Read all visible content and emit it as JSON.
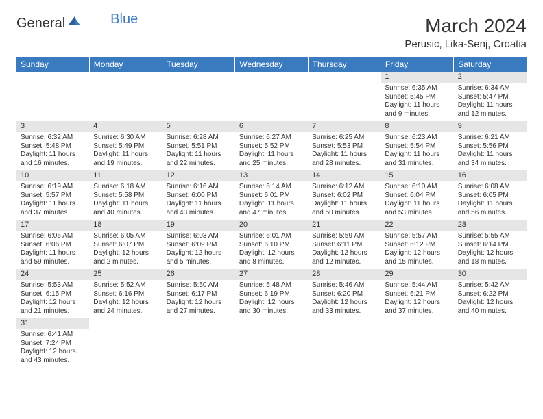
{
  "logo": {
    "text_general": "General",
    "text_blue": "Blue"
  },
  "title": "March 2024",
  "location": "Perusic, Lika-Senj, Croatia",
  "colors": {
    "header_bg": "#3a7bbf",
    "header_text": "#ffffff",
    "daynum_bg": "#e6e6e6",
    "text": "#333333",
    "page_bg": "#ffffff"
  },
  "weekdays": [
    "Sunday",
    "Monday",
    "Tuesday",
    "Wednesday",
    "Thursday",
    "Friday",
    "Saturday"
  ],
  "weeks": [
    [
      null,
      null,
      null,
      null,
      null,
      {
        "n": "1",
        "sr": "Sunrise: 6:35 AM",
        "ss": "Sunset: 5:45 PM",
        "dl": "Daylight: 11 hours and 9 minutes."
      },
      {
        "n": "2",
        "sr": "Sunrise: 6:34 AM",
        "ss": "Sunset: 5:47 PM",
        "dl": "Daylight: 11 hours and 12 minutes."
      }
    ],
    [
      {
        "n": "3",
        "sr": "Sunrise: 6:32 AM",
        "ss": "Sunset: 5:48 PM",
        "dl": "Daylight: 11 hours and 16 minutes."
      },
      {
        "n": "4",
        "sr": "Sunrise: 6:30 AM",
        "ss": "Sunset: 5:49 PM",
        "dl": "Daylight: 11 hours and 19 minutes."
      },
      {
        "n": "5",
        "sr": "Sunrise: 6:28 AM",
        "ss": "Sunset: 5:51 PM",
        "dl": "Daylight: 11 hours and 22 minutes."
      },
      {
        "n": "6",
        "sr": "Sunrise: 6:27 AM",
        "ss": "Sunset: 5:52 PM",
        "dl": "Daylight: 11 hours and 25 minutes."
      },
      {
        "n": "7",
        "sr": "Sunrise: 6:25 AM",
        "ss": "Sunset: 5:53 PM",
        "dl": "Daylight: 11 hours and 28 minutes."
      },
      {
        "n": "8",
        "sr": "Sunrise: 6:23 AM",
        "ss": "Sunset: 5:54 PM",
        "dl": "Daylight: 11 hours and 31 minutes."
      },
      {
        "n": "9",
        "sr": "Sunrise: 6:21 AM",
        "ss": "Sunset: 5:56 PM",
        "dl": "Daylight: 11 hours and 34 minutes."
      }
    ],
    [
      {
        "n": "10",
        "sr": "Sunrise: 6:19 AM",
        "ss": "Sunset: 5:57 PM",
        "dl": "Daylight: 11 hours and 37 minutes."
      },
      {
        "n": "11",
        "sr": "Sunrise: 6:18 AM",
        "ss": "Sunset: 5:58 PM",
        "dl": "Daylight: 11 hours and 40 minutes."
      },
      {
        "n": "12",
        "sr": "Sunrise: 6:16 AM",
        "ss": "Sunset: 6:00 PM",
        "dl": "Daylight: 11 hours and 43 minutes."
      },
      {
        "n": "13",
        "sr": "Sunrise: 6:14 AM",
        "ss": "Sunset: 6:01 PM",
        "dl": "Daylight: 11 hours and 47 minutes."
      },
      {
        "n": "14",
        "sr": "Sunrise: 6:12 AM",
        "ss": "Sunset: 6:02 PM",
        "dl": "Daylight: 11 hours and 50 minutes."
      },
      {
        "n": "15",
        "sr": "Sunrise: 6:10 AM",
        "ss": "Sunset: 6:04 PM",
        "dl": "Daylight: 11 hours and 53 minutes."
      },
      {
        "n": "16",
        "sr": "Sunrise: 6:08 AM",
        "ss": "Sunset: 6:05 PM",
        "dl": "Daylight: 11 hours and 56 minutes."
      }
    ],
    [
      {
        "n": "17",
        "sr": "Sunrise: 6:06 AM",
        "ss": "Sunset: 6:06 PM",
        "dl": "Daylight: 11 hours and 59 minutes."
      },
      {
        "n": "18",
        "sr": "Sunrise: 6:05 AM",
        "ss": "Sunset: 6:07 PM",
        "dl": "Daylight: 12 hours and 2 minutes."
      },
      {
        "n": "19",
        "sr": "Sunrise: 6:03 AM",
        "ss": "Sunset: 6:09 PM",
        "dl": "Daylight: 12 hours and 5 minutes."
      },
      {
        "n": "20",
        "sr": "Sunrise: 6:01 AM",
        "ss": "Sunset: 6:10 PM",
        "dl": "Daylight: 12 hours and 8 minutes."
      },
      {
        "n": "21",
        "sr": "Sunrise: 5:59 AM",
        "ss": "Sunset: 6:11 PM",
        "dl": "Daylight: 12 hours and 12 minutes."
      },
      {
        "n": "22",
        "sr": "Sunrise: 5:57 AM",
        "ss": "Sunset: 6:12 PM",
        "dl": "Daylight: 12 hours and 15 minutes."
      },
      {
        "n": "23",
        "sr": "Sunrise: 5:55 AM",
        "ss": "Sunset: 6:14 PM",
        "dl": "Daylight: 12 hours and 18 minutes."
      }
    ],
    [
      {
        "n": "24",
        "sr": "Sunrise: 5:53 AM",
        "ss": "Sunset: 6:15 PM",
        "dl": "Daylight: 12 hours and 21 minutes."
      },
      {
        "n": "25",
        "sr": "Sunrise: 5:52 AM",
        "ss": "Sunset: 6:16 PM",
        "dl": "Daylight: 12 hours and 24 minutes."
      },
      {
        "n": "26",
        "sr": "Sunrise: 5:50 AM",
        "ss": "Sunset: 6:17 PM",
        "dl": "Daylight: 12 hours and 27 minutes."
      },
      {
        "n": "27",
        "sr": "Sunrise: 5:48 AM",
        "ss": "Sunset: 6:19 PM",
        "dl": "Daylight: 12 hours and 30 minutes."
      },
      {
        "n": "28",
        "sr": "Sunrise: 5:46 AM",
        "ss": "Sunset: 6:20 PM",
        "dl": "Daylight: 12 hours and 33 minutes."
      },
      {
        "n": "29",
        "sr": "Sunrise: 5:44 AM",
        "ss": "Sunset: 6:21 PM",
        "dl": "Daylight: 12 hours and 37 minutes."
      },
      {
        "n": "30",
        "sr": "Sunrise: 5:42 AM",
        "ss": "Sunset: 6:22 PM",
        "dl": "Daylight: 12 hours and 40 minutes."
      }
    ],
    [
      {
        "n": "31",
        "sr": "Sunrise: 6:41 AM",
        "ss": "Sunset: 7:24 PM",
        "dl": "Daylight: 12 hours and 43 minutes."
      },
      null,
      null,
      null,
      null,
      null,
      null
    ]
  ]
}
